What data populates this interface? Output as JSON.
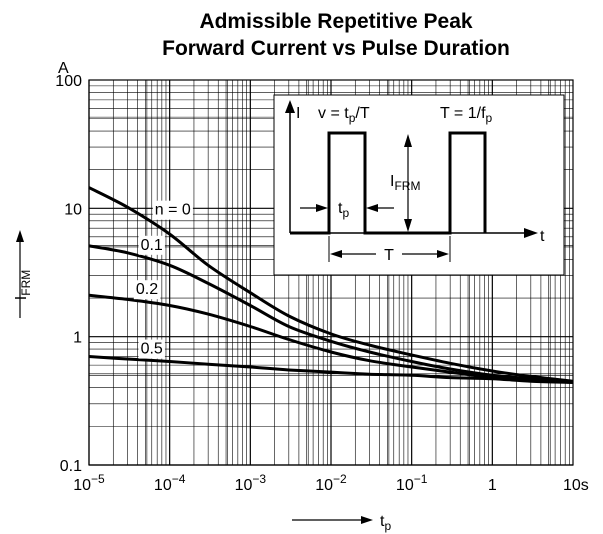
{
  "chart_data": {
    "type": "line",
    "title_line1": "Admissible Repetitive Peak",
    "title_line2": "Forward Current vs Pulse Duration",
    "ylabel_main": "I",
    "ylabel_sub": "FRM",
    "yunit": "A",
    "xlabel_main": "t",
    "xlabel_sub": "p",
    "x_scale": "log",
    "y_scale": "log",
    "xlim": [
      1e-05,
      10
    ],
    "ylim": [
      0.1,
      100
    ],
    "grid": true,
    "x_ticks": [
      {
        "value": 1e-05,
        "base": "10",
        "exp": "−5"
      },
      {
        "value": 0.0001,
        "base": "10",
        "exp": "−4"
      },
      {
        "value": 0.001,
        "base": "10",
        "exp": "−3"
      },
      {
        "value": 0.01,
        "base": "10",
        "exp": "−2"
      },
      {
        "value": 0.1,
        "base": "10",
        "exp": "−1"
      },
      {
        "value": 1,
        "base": "1",
        "exp": ""
      },
      {
        "value": 10,
        "base": "10s",
        "exp": ""
      }
    ],
    "y_ticks": [
      {
        "value": 0.1,
        "label": "0.1"
      },
      {
        "value": 1,
        "label": "1"
      },
      {
        "value": 10,
        "label": "10"
      },
      {
        "value": 100,
        "label": "100"
      }
    ],
    "series": [
      {
        "name": "n = 0",
        "x": [
          1e-05,
          3e-05,
          0.0001,
          0.0003,
          0.001,
          0.003,
          0.01,
          0.03,
          0.1,
          0.3,
          1,
          3,
          10
        ],
        "y": [
          14.5,
          10.2,
          6.3,
          3.6,
          2.2,
          1.45,
          1.05,
          0.86,
          0.72,
          0.62,
          0.54,
          0.49,
          0.45
        ]
      },
      {
        "name": "0.1",
        "x": [
          1e-05,
          3e-05,
          0.0001,
          0.0003,
          0.001,
          0.003,
          0.01,
          0.03,
          0.1,
          0.3,
          1,
          3,
          10
        ],
        "y": [
          5.1,
          4.5,
          3.6,
          2.6,
          1.75,
          1.2,
          0.92,
          0.76,
          0.64,
          0.56,
          0.5,
          0.47,
          0.44
        ]
      },
      {
        "name": "0.2",
        "x": [
          1e-05,
          3e-05,
          0.0001,
          0.0003,
          0.001,
          0.003,
          0.01,
          0.03,
          0.1,
          0.3,
          1,
          3,
          10
        ],
        "y": [
          2.1,
          1.95,
          1.75,
          1.5,
          1.2,
          0.95,
          0.76,
          0.65,
          0.58,
          0.53,
          0.48,
          0.46,
          0.44
        ]
      },
      {
        "name": "0.5",
        "x": [
          1e-05,
          3e-05,
          0.0001,
          0.0003,
          0.001,
          0.003,
          0.01,
          0.03,
          0.1,
          0.3,
          1,
          3,
          10
        ],
        "y": [
          0.7,
          0.67,
          0.64,
          0.61,
          0.58,
          0.55,
          0.53,
          0.51,
          0.5,
          0.48,
          0.47,
          0.45,
          0.44
        ]
      }
    ],
    "inset": {
      "i_label": "I",
      "formula_v_main": "v = t",
      "formula_v_sub": "p",
      "formula_v_tail": "/T",
      "formula_T_main": "T = 1/f",
      "formula_T_sub": "p",
      "ifrm_main": "I",
      "ifrm_sub": "FRM",
      "tp_main": "t",
      "tp_sub": "p",
      "t_axis": "t",
      "period": "T"
    }
  }
}
